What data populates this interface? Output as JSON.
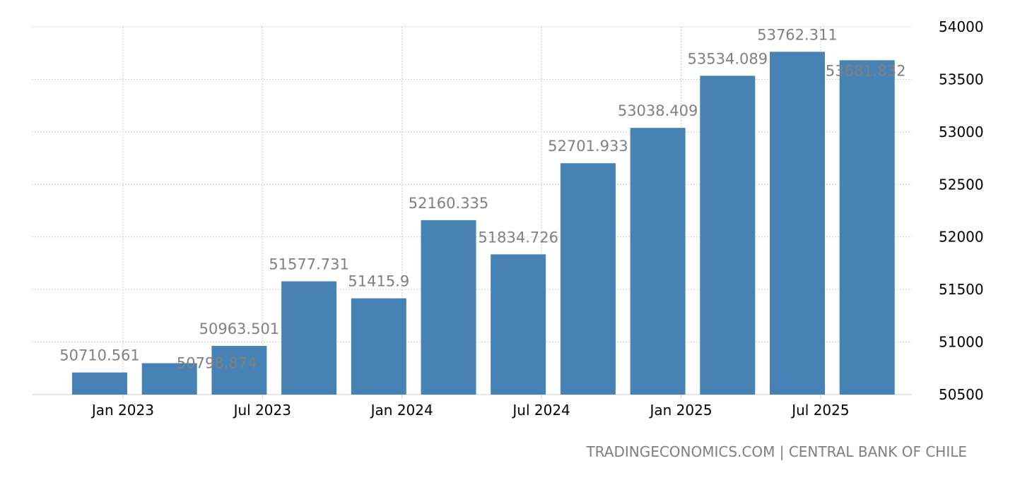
{
  "chart_data": {
    "type": "bar",
    "title": "",
    "xlabel": "",
    "ylabel": "",
    "categories": [
      "Dec 2022",
      "Mar 2023",
      "Jun 2023",
      "Sep 2023",
      "Dec 2023",
      "Mar 2024",
      "Jun 2024",
      "Sep 2024",
      "Dec 2024",
      "Mar 2025",
      "Jun 2025",
      "Sep 2025"
    ],
    "values": [
      50710.561,
      50798.874,
      50963.501,
      51577.731,
      51415.9,
      52160.335,
      51834.726,
      52701.933,
      53038.409,
      53534.089,
      53762.311,
      53681.832
    ],
    "value_labels": [
      "50710.561",
      "50798.874",
      "50963.501",
      "51577.731",
      "51415.9",
      "52160.335",
      "51834.726",
      "52701.933",
      "53038.409",
      "53534.089",
      "53762.311",
      "53681.832"
    ],
    "ylim": [
      50500,
      54000
    ],
    "yticks": [
      "50500",
      "51000",
      "51500",
      "52000",
      "52500",
      "53000",
      "53500",
      "54000"
    ],
    "xticks": [
      "Jan 2023",
      "Jul 2023",
      "Jan 2024",
      "Jul 2024",
      "Jan 2025",
      "Jul 2025"
    ],
    "grid": true,
    "y_axis_side": "right",
    "colors": {
      "bar": "#4682b4",
      "label": "#808080",
      "grid": "#cccccc",
      "axis_text": "#000000"
    }
  },
  "footer": {
    "source": "TRADINGECONOMICS.COM | CENTRAL BANK OF CHILE"
  }
}
